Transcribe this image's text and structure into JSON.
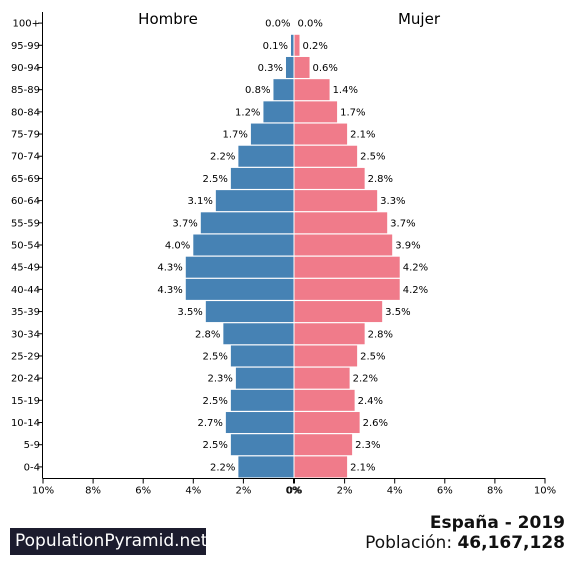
{
  "chart_data": {
    "type": "bar",
    "orientation": "horizontal-pyramid",
    "categories": [
      "0-4",
      "5-9",
      "10-14",
      "15-19",
      "20-24",
      "25-29",
      "30-34",
      "35-39",
      "40-44",
      "45-49",
      "50-54",
      "55-59",
      "60-64",
      "65-69",
      "70-74",
      "75-79",
      "80-84",
      "85-89",
      "90-94",
      "95-99",
      "100+"
    ],
    "series": [
      {
        "name": "Hombre",
        "color": "#4682b4",
        "values": [
          2.2,
          2.5,
          2.7,
          2.5,
          2.3,
          2.5,
          2.8,
          3.5,
          4.3,
          4.3,
          4.0,
          3.7,
          3.1,
          2.5,
          2.2,
          1.7,
          1.2,
          0.8,
          0.3,
          0.1,
          0.0
        ],
        "labels": [
          "2.2%",
          "2.5%",
          "2.7%",
          "2.5%",
          "2.3%",
          "2.5%",
          "2.8%",
          "3.5%",
          "4.3%",
          "4.3%",
          "4.0%",
          "3.7%",
          "3.1%",
          "2.5%",
          "2.2%",
          "1.7%",
          "1.2%",
          "0.8%",
          "0.3%",
          "0.1%",
          "0.0%"
        ]
      },
      {
        "name": "Mujer",
        "color": "#f07b8a",
        "values": [
          2.1,
          2.3,
          2.6,
          2.4,
          2.2,
          2.5,
          2.8,
          3.5,
          4.2,
          4.2,
          3.9,
          3.7,
          3.3,
          2.8,
          2.5,
          2.1,
          1.7,
          1.4,
          0.6,
          0.2,
          0.0
        ],
        "labels": [
          "2.1%",
          "2.3%",
          "2.6%",
          "2.4%",
          "2.2%",
          "2.5%",
          "2.8%",
          "3.5%",
          "4.2%",
          "4.2%",
          "3.9%",
          "3.7%",
          "3.3%",
          "2.8%",
          "2.5%",
          "2.1%",
          "1.7%",
          "1.4%",
          "0.6%",
          "0.2%",
          "0.0%"
        ]
      }
    ],
    "xlim": [
      0,
      10
    ],
    "x_ticks_left": [
      "10%",
      "8%",
      "6%",
      "4%",
      "2%",
      "0%"
    ],
    "x_ticks_right": [
      "0%",
      "2%",
      "4%",
      "6%",
      "8%",
      "10%"
    ],
    "grid": false
  },
  "footer": {
    "brand": "PopulationPyramid.net",
    "title": "España - 2019",
    "population_label": "Población:",
    "population_value": "46,167,128"
  }
}
